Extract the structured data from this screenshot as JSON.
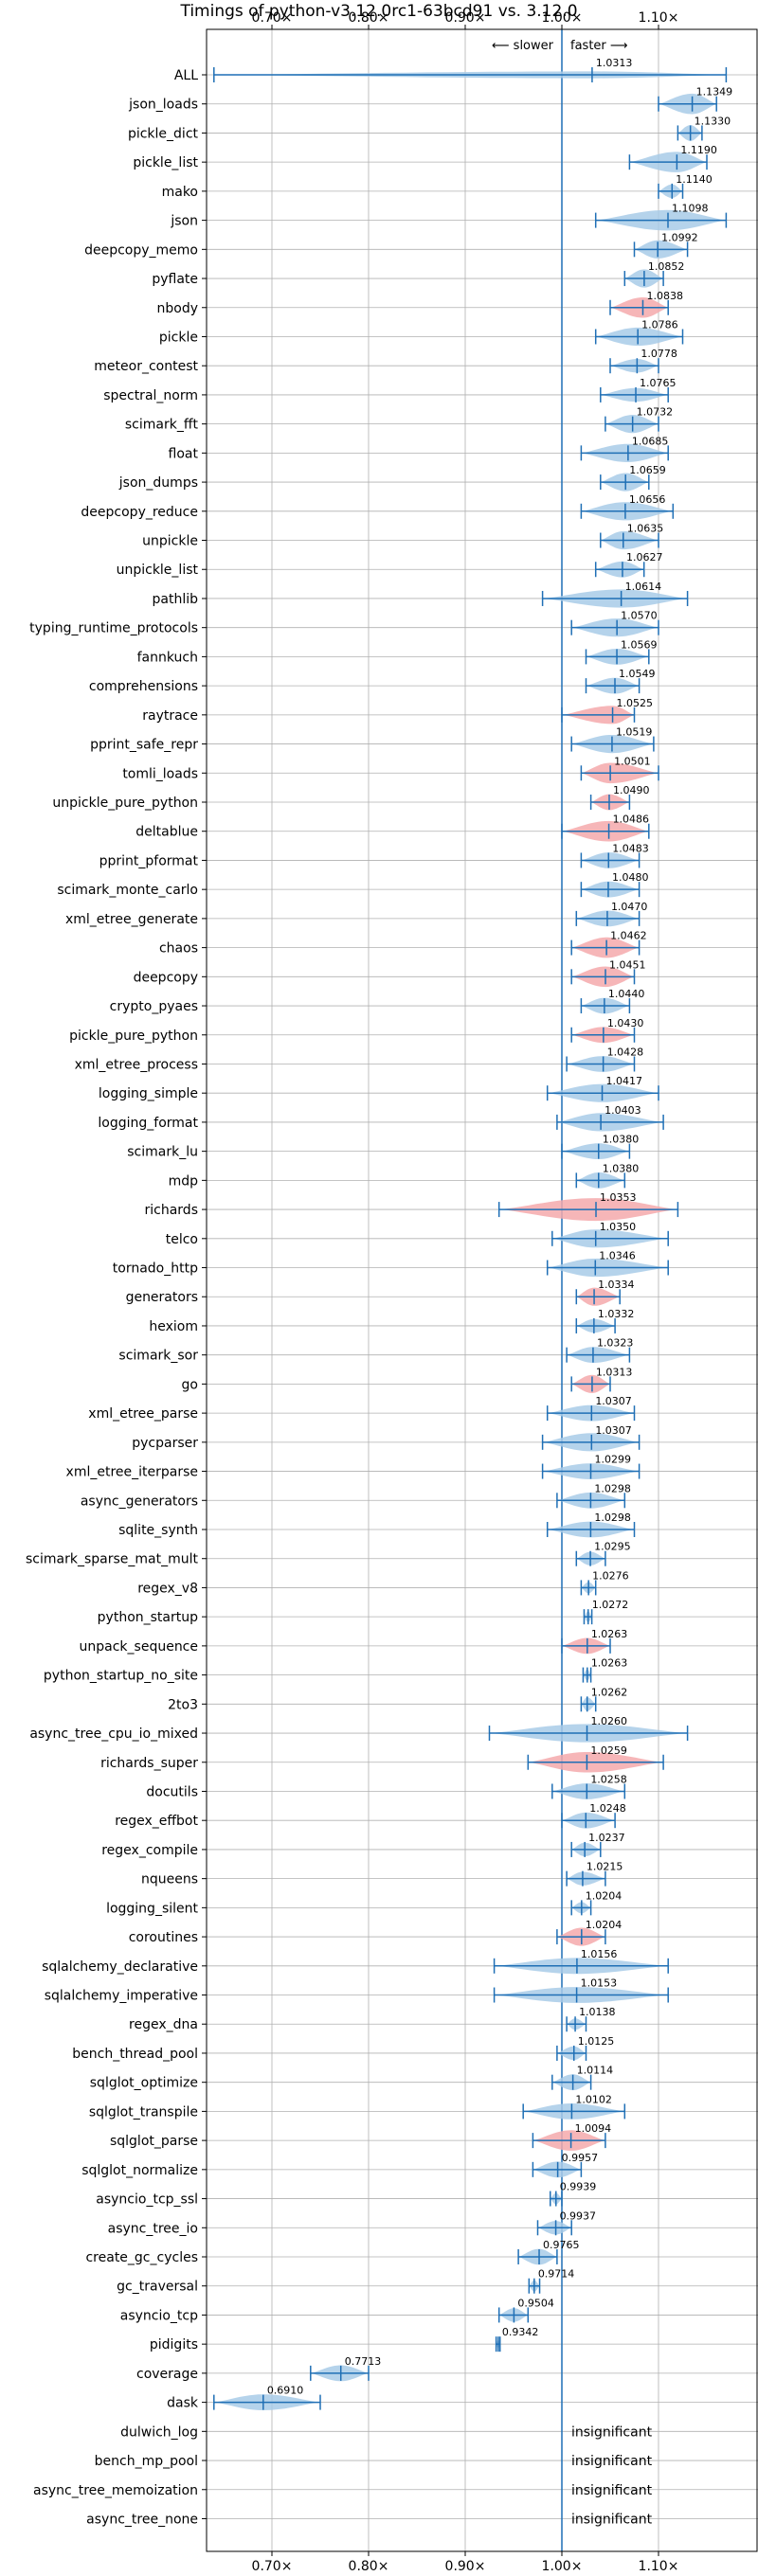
{
  "chart_data": {
    "type": "violin",
    "title": "Timings of python-v3.12.0rc1-63bcd91 vs. 3.12.0",
    "annotation_slower": "⟵ slower",
    "annotation_faster": "faster ⟶",
    "xlim": [
      0.63,
      1.175
    ],
    "xticks": [
      0.7,
      0.8,
      0.9,
      1.0,
      1.1
    ],
    "xtick_labels": [
      "0.70×",
      "0.80×",
      "0.90×",
      "1.00×",
      "1.10×"
    ],
    "reference_line": 1.0,
    "grid": true,
    "colors": {
      "faster": "#a8cbe8",
      "slower": "#f4a9ab",
      "line": "#1f6fb5"
    },
    "insignificant_label": "insignificant",
    "benchmarks": [
      {
        "name": "ALL",
        "value": 1.0313,
        "label": "1.0313",
        "min": 0.64,
        "max": 1.17,
        "color": "blue",
        "width": 0.3
      },
      {
        "name": "json_loads",
        "value": 1.1349,
        "label": "1.1349",
        "min": 1.1,
        "max": 1.16,
        "color": "blue",
        "width": 0.9
      },
      {
        "name": "pickle_dict",
        "value": 1.133,
        "label": "1.1330",
        "min": 1.12,
        "max": 1.145,
        "color": "blue",
        "width": 0.7
      },
      {
        "name": "pickle_list",
        "value": 1.119,
        "label": "1.1190",
        "min": 1.07,
        "max": 1.15,
        "color": "blue",
        "width": 0.9
      },
      {
        "name": "mako",
        "value": 1.114,
        "label": "1.1140",
        "min": 1.1,
        "max": 1.125,
        "color": "blue",
        "width": 0.6
      },
      {
        "name": "json",
        "value": 1.1098,
        "label": "1.1098",
        "min": 1.035,
        "max": 1.17,
        "color": "blue",
        "width": 0.9
      },
      {
        "name": "deepcopy_memo",
        "value": 1.0992,
        "label": "1.0992",
        "min": 1.075,
        "max": 1.13,
        "color": "blue",
        "width": 0.8
      },
      {
        "name": "pyflate",
        "value": 1.0852,
        "label": "1.0852",
        "min": 1.065,
        "max": 1.105,
        "color": "blue",
        "width": 0.8
      },
      {
        "name": "nbody",
        "value": 1.0838,
        "label": "1.0838",
        "min": 1.05,
        "max": 1.11,
        "color": "red",
        "width": 0.9
      },
      {
        "name": "pickle",
        "value": 1.0786,
        "label": "1.0786",
        "min": 1.035,
        "max": 1.125,
        "color": "blue",
        "width": 0.8
      },
      {
        "name": "meteor_contest",
        "value": 1.0778,
        "label": "1.0778",
        "min": 1.05,
        "max": 1.1,
        "color": "blue",
        "width": 0.6
      },
      {
        "name": "spectral_norm",
        "value": 1.0765,
        "label": "1.0765",
        "min": 1.04,
        "max": 1.11,
        "color": "blue",
        "width": 0.6
      },
      {
        "name": "scimark_fft",
        "value": 1.0732,
        "label": "1.0732",
        "min": 1.045,
        "max": 1.1,
        "color": "blue",
        "width": 0.8
      },
      {
        "name": "float",
        "value": 1.0685,
        "label": "1.0685",
        "min": 1.02,
        "max": 1.11,
        "color": "blue",
        "width": 0.8
      },
      {
        "name": "json_dumps",
        "value": 1.0659,
        "label": "1.0659",
        "min": 1.04,
        "max": 1.09,
        "color": "blue",
        "width": 0.8
      },
      {
        "name": "deepcopy_reduce",
        "value": 1.0656,
        "label": "1.0656",
        "min": 1.02,
        "max": 1.115,
        "color": "blue",
        "width": 0.8
      },
      {
        "name": "unpickle",
        "value": 1.0635,
        "label": "1.0635",
        "min": 1.04,
        "max": 1.1,
        "color": "blue",
        "width": 0.8
      },
      {
        "name": "unpickle_list",
        "value": 1.0627,
        "label": "1.0627",
        "min": 1.035,
        "max": 1.085,
        "color": "blue",
        "width": 0.7
      },
      {
        "name": "pathlib",
        "value": 1.0614,
        "label": "1.0614",
        "min": 0.98,
        "max": 1.13,
        "color": "blue",
        "width": 0.8
      },
      {
        "name": "typing_runtime_protocols",
        "value": 1.057,
        "label": "1.0570",
        "min": 1.01,
        "max": 1.1,
        "color": "blue",
        "width": 0.8
      },
      {
        "name": "fannkuch",
        "value": 1.0569,
        "label": "1.0569",
        "min": 1.025,
        "max": 1.09,
        "color": "blue",
        "width": 0.7
      },
      {
        "name": "comprehensions",
        "value": 1.0549,
        "label": "1.0549",
        "min": 1.025,
        "max": 1.08,
        "color": "blue",
        "width": 0.7
      },
      {
        "name": "raytrace",
        "value": 1.0525,
        "label": "1.0525",
        "min": 1.0,
        "max": 1.075,
        "color": "red",
        "width": 0.8
      },
      {
        "name": "pprint_safe_repr",
        "value": 1.0519,
        "label": "1.0519",
        "min": 1.01,
        "max": 1.095,
        "color": "blue",
        "width": 0.8
      },
      {
        "name": "tomli_loads",
        "value": 1.0501,
        "label": "1.0501",
        "min": 1.02,
        "max": 1.1,
        "color": "red",
        "width": 0.9
      },
      {
        "name": "unpickle_pure_python",
        "value": 1.049,
        "label": "1.0490",
        "min": 1.03,
        "max": 1.07,
        "color": "red",
        "width": 0.7
      },
      {
        "name": "deltablue",
        "value": 1.0486,
        "label": "1.0486",
        "min": 1.0,
        "max": 1.09,
        "color": "red",
        "width": 0.9
      },
      {
        "name": "pprint_pformat",
        "value": 1.0483,
        "label": "1.0483",
        "min": 1.02,
        "max": 1.08,
        "color": "blue",
        "width": 0.7
      },
      {
        "name": "scimark_monte_carlo",
        "value": 1.048,
        "label": "1.0480",
        "min": 1.02,
        "max": 1.08,
        "color": "blue",
        "width": 0.7
      },
      {
        "name": "xml_etree_generate",
        "value": 1.047,
        "label": "1.0470",
        "min": 1.015,
        "max": 1.08,
        "color": "blue",
        "width": 0.7
      },
      {
        "name": "chaos",
        "value": 1.0462,
        "label": "1.0462",
        "min": 1.01,
        "max": 1.08,
        "color": "red",
        "width": 0.9
      },
      {
        "name": "deepcopy",
        "value": 1.0451,
        "label": "1.0451",
        "min": 1.01,
        "max": 1.075,
        "color": "red",
        "width": 0.9
      },
      {
        "name": "crypto_pyaes",
        "value": 1.044,
        "label": "1.0440",
        "min": 1.02,
        "max": 1.07,
        "color": "blue",
        "width": 0.7
      },
      {
        "name": "pickle_pure_python",
        "value": 1.043,
        "label": "1.0430",
        "min": 1.01,
        "max": 1.075,
        "color": "red",
        "width": 0.7
      },
      {
        "name": "xml_etree_process",
        "value": 1.0428,
        "label": "1.0428",
        "min": 1.005,
        "max": 1.075,
        "color": "blue",
        "width": 0.7
      },
      {
        "name": "logging_simple",
        "value": 1.0417,
        "label": "1.0417",
        "min": 0.985,
        "max": 1.1,
        "color": "blue",
        "width": 0.8
      },
      {
        "name": "logging_format",
        "value": 1.0403,
        "label": "1.0403",
        "min": 0.995,
        "max": 1.105,
        "color": "blue",
        "width": 0.8
      },
      {
        "name": "scimark_lu",
        "value": 1.038,
        "label": "1.0380",
        "min": 1.0,
        "max": 1.07,
        "color": "blue",
        "width": 0.7
      },
      {
        "name": "mdp",
        "value": 1.038,
        "label": "1.0380",
        "min": 1.015,
        "max": 1.065,
        "color": "blue",
        "width": 0.7
      },
      {
        "name": "richards",
        "value": 1.0353,
        "label": "1.0353",
        "min": 0.935,
        "max": 1.12,
        "color": "red",
        "width": 1.0
      },
      {
        "name": "telco",
        "value": 1.035,
        "label": "1.0350",
        "min": 0.99,
        "max": 1.11,
        "color": "blue",
        "width": 0.8
      },
      {
        "name": "tornado_http",
        "value": 1.0346,
        "label": "1.0346",
        "min": 0.985,
        "max": 1.11,
        "color": "blue",
        "width": 0.8
      },
      {
        "name": "generators",
        "value": 1.0334,
        "label": "1.0334",
        "min": 1.015,
        "max": 1.06,
        "color": "red",
        "width": 0.8
      },
      {
        "name": "hexiom",
        "value": 1.0332,
        "label": "1.0332",
        "min": 1.015,
        "max": 1.055,
        "color": "blue",
        "width": 0.6
      },
      {
        "name": "scimark_sor",
        "value": 1.0323,
        "label": "1.0323",
        "min": 1.005,
        "max": 1.07,
        "color": "blue",
        "width": 0.7
      },
      {
        "name": "go",
        "value": 1.0313,
        "label": "1.0313",
        "min": 1.01,
        "max": 1.05,
        "color": "red",
        "width": 0.8
      },
      {
        "name": "xml_etree_parse",
        "value": 1.0307,
        "label": "1.0307",
        "min": 0.985,
        "max": 1.075,
        "color": "blue",
        "width": 0.7
      },
      {
        "name": "pycparser",
        "value": 1.0307,
        "label": "1.0307",
        "min": 0.98,
        "max": 1.08,
        "color": "blue",
        "width": 0.8
      },
      {
        "name": "xml_etree_iterparse",
        "value": 1.0299,
        "label": "1.0299",
        "min": 0.98,
        "max": 1.08,
        "color": "blue",
        "width": 0.7
      },
      {
        "name": "async_generators",
        "value": 1.0298,
        "label": "1.0298",
        "min": 0.995,
        "max": 1.065,
        "color": "blue",
        "width": 0.7
      },
      {
        "name": "sqlite_synth",
        "value": 1.0298,
        "label": "1.0298",
        "min": 0.985,
        "max": 1.075,
        "color": "blue",
        "width": 0.7
      },
      {
        "name": "scimark_sparse_mat_mult",
        "value": 1.0295,
        "label": "1.0295",
        "min": 1.015,
        "max": 1.045,
        "color": "blue",
        "width": 0.6
      },
      {
        "name": "regex_v8",
        "value": 1.0276,
        "label": "1.0276",
        "min": 1.02,
        "max": 1.035,
        "color": "blue",
        "width": 0.5
      },
      {
        "name": "python_startup",
        "value": 1.0272,
        "label": "1.0272",
        "min": 1.023,
        "max": 1.031,
        "color": "blue",
        "width": 0.5
      },
      {
        "name": "unpack_sequence",
        "value": 1.0263,
        "label": "1.0263",
        "min": 1.0,
        "max": 1.05,
        "color": "red",
        "width": 0.7
      },
      {
        "name": "python_startup_no_site",
        "value": 1.0263,
        "label": "1.0263",
        "min": 1.022,
        "max": 1.03,
        "color": "blue",
        "width": 0.5
      },
      {
        "name": "2to3",
        "value": 1.0262,
        "label": "1.0262",
        "min": 1.02,
        "max": 1.035,
        "color": "blue",
        "width": 0.6
      },
      {
        "name": "async_tree_cpu_io_mixed",
        "value": 1.026,
        "label": "1.0260",
        "min": 0.925,
        "max": 1.13,
        "color": "blue",
        "width": 0.8
      },
      {
        "name": "richards_super",
        "value": 1.0259,
        "label": "1.0259",
        "min": 0.965,
        "max": 1.105,
        "color": "red",
        "width": 0.9
      },
      {
        "name": "docutils",
        "value": 1.0258,
        "label": "1.0258",
        "min": 0.99,
        "max": 1.065,
        "color": "blue",
        "width": 0.7
      },
      {
        "name": "regex_effbot",
        "value": 1.0248,
        "label": "1.0248",
        "min": 1.0,
        "max": 1.055,
        "color": "blue",
        "width": 0.7
      },
      {
        "name": "regex_compile",
        "value": 1.0237,
        "label": "1.0237",
        "min": 1.01,
        "max": 1.04,
        "color": "blue",
        "width": 0.6
      },
      {
        "name": "nqueens",
        "value": 1.0215,
        "label": "1.0215",
        "min": 1.005,
        "max": 1.045,
        "color": "blue",
        "width": 0.6
      },
      {
        "name": "logging_silent",
        "value": 1.0204,
        "label": "1.0204",
        "min": 1.01,
        "max": 1.03,
        "color": "blue",
        "width": 0.5
      },
      {
        "name": "coroutines",
        "value": 1.0204,
        "label": "1.0204",
        "min": 0.995,
        "max": 1.045,
        "color": "red",
        "width": 0.8
      },
      {
        "name": "sqlalchemy_declarative",
        "value": 1.0156,
        "label": "1.0156",
        "min": 0.93,
        "max": 1.11,
        "color": "blue",
        "width": 0.7
      },
      {
        "name": "sqlalchemy_imperative",
        "value": 1.0153,
        "label": "1.0153",
        "min": 0.93,
        "max": 1.11,
        "color": "blue",
        "width": 0.7
      },
      {
        "name": "regex_dna",
        "value": 1.0138,
        "label": "1.0138",
        "min": 1.005,
        "max": 1.025,
        "color": "blue",
        "width": 0.5
      },
      {
        "name": "bench_thread_pool",
        "value": 1.0125,
        "label": "1.0125",
        "min": 0.995,
        "max": 1.025,
        "color": "blue",
        "width": 0.6
      },
      {
        "name": "sqlglot_optimize",
        "value": 1.0114,
        "label": "1.0114",
        "min": 0.99,
        "max": 1.03,
        "color": "blue",
        "width": 0.7
      },
      {
        "name": "sqlglot_transpile",
        "value": 1.0102,
        "label": "1.0102",
        "min": 0.96,
        "max": 1.065,
        "color": "blue",
        "width": 0.7
      },
      {
        "name": "sqlglot_parse",
        "value": 1.0094,
        "label": "1.0094",
        "min": 0.97,
        "max": 1.045,
        "color": "red",
        "width": 0.9
      },
      {
        "name": "sqlglot_normalize",
        "value": 0.9957,
        "label": "0.9957",
        "min": 0.97,
        "max": 1.02,
        "color": "blue",
        "width": 0.7
      },
      {
        "name": "asyncio_tcp_ssl",
        "value": 0.9939,
        "label": "0.9939",
        "min": 0.988,
        "max": 1.0,
        "color": "blue",
        "width": 0.5
      },
      {
        "name": "async_tree_io",
        "value": 0.9937,
        "label": "0.9937",
        "min": 0.975,
        "max": 1.01,
        "color": "blue",
        "width": 0.6
      },
      {
        "name": "create_gc_cycles",
        "value": 0.9765,
        "label": "0.9765",
        "min": 0.955,
        "max": 0.995,
        "color": "blue",
        "width": 0.7
      },
      {
        "name": "gc_traversal",
        "value": 0.9714,
        "label": "0.9714",
        "min": 0.966,
        "max": 0.977,
        "color": "blue",
        "width": 0.5
      },
      {
        "name": "asyncio_tcp",
        "value": 0.9504,
        "label": "0.9504",
        "min": 0.935,
        "max": 0.965,
        "color": "blue",
        "width": 0.6
      },
      {
        "name": "pidigits",
        "value": 0.9342,
        "label": "0.9342",
        "min": 0.932,
        "max": 0.936,
        "color": "blue",
        "width": 0.4
      },
      {
        "name": "coverage",
        "value": 0.7713,
        "label": "0.7713",
        "min": 0.74,
        "max": 0.8,
        "color": "blue",
        "width": 0.7
      },
      {
        "name": "dask",
        "value": 0.691,
        "label": "0.6910",
        "min": 0.64,
        "max": 0.75,
        "color": "blue",
        "width": 0.7
      },
      {
        "name": "dulwich_log",
        "insignificant": true
      },
      {
        "name": "bench_mp_pool",
        "insignificant": true
      },
      {
        "name": "async_tree_memoization",
        "insignificant": true
      },
      {
        "name": "async_tree_none",
        "insignificant": true
      }
    ]
  }
}
